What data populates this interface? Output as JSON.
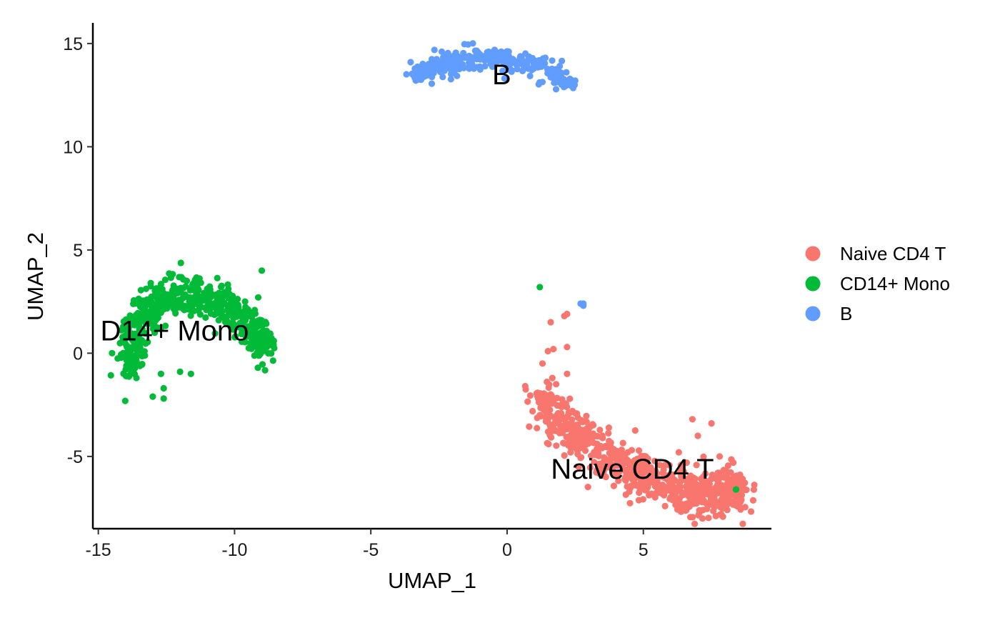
{
  "chart_data": {
    "type": "scatter",
    "title": "",
    "xlabel": "UMAP_1",
    "ylabel": "UMAP_2",
    "xlim": [
      -15.2,
      9.7
    ],
    "ylim": [
      -8.5,
      16.0
    ],
    "xticks": [
      -15,
      -10,
      -5,
      0,
      5
    ],
    "yticks": [
      -5,
      0,
      5,
      10,
      15
    ],
    "grid": false,
    "legend_position": "right",
    "series": [
      {
        "name": "Naive CD4 T",
        "color": "#F8766D",
        "cluster_label": "Naive CD4 T",
        "label_position": [
          4.6,
          -5.6
        ],
        "points": [
          [
            1.6,
            1.5
          ],
          [
            2.1,
            1.8
          ],
          [
            2.2,
            1.9
          ],
          [
            1.5,
            0.1
          ],
          [
            1.7,
            0.2
          ],
          [
            2.2,
            0.3
          ],
          [
            1.3,
            -0.5
          ],
          [
            2.2,
            -1.0
          ],
          [
            1.8,
            -1.5
          ],
          [
            1.4,
            -2.0
          ],
          [
            1.3,
            -2.5
          ],
          [
            1.2,
            -3.0
          ],
          [
            1.5,
            -3.2
          ],
          [
            6.8,
            -3.2
          ],
          [
            7.5,
            -3.4
          ],
          [
            7.0,
            -4.0
          ],
          [
            6.3,
            -4.8
          ],
          [
            7.8,
            -5.0
          ],
          [
            8.3,
            -5.3
          ],
          [
            8.6,
            -6.4
          ],
          [
            8.6,
            -6.7
          ],
          [
            2.0,
            -2.5
          ],
          [
            1.6,
            -2.1
          ],
          [
            1.9,
            -3.0
          ],
          [
            2.4,
            -2.8
          ],
          [
            2.9,
            -3.3
          ]
        ],
        "main_arc": [
          [
            1.2,
            -2.2
          ],
          [
            2.2,
            -3.6
          ],
          [
            3.6,
            -5.0
          ],
          [
            5.0,
            -6.0
          ],
          [
            6.4,
            -6.6
          ],
          [
            7.6,
            -6.9
          ],
          [
            8.5,
            -6.5
          ]
        ],
        "main_arc_count": 760,
        "main_arc_spread": 0.55
      },
      {
        "name": "CD14+ Mono",
        "color": "#00BA38",
        "cluster_label": "D14+ Mono",
        "label_position": [
          -12.2,
          1.1
        ],
        "points": [
          [
            -9.0,
            4.0
          ],
          [
            1.2,
            3.2
          ],
          [
            8.4,
            -6.6
          ],
          [
            -13.0,
            -2.1
          ],
          [
            -12.6,
            -2.2
          ],
          [
            -12.6,
            -1.7
          ],
          [
            -12.7,
            -1.0
          ],
          [
            -12.0,
            -0.9
          ],
          [
            -11.6,
            -1.0
          ],
          [
            -14.0,
            0.0
          ],
          [
            -13.6,
            -1.2
          ]
        ],
        "main_arc": [
          [
            -13.8,
            -0.8
          ],
          [
            -13.7,
            1.2
          ],
          [
            -12.8,
            2.4
          ],
          [
            -11.7,
            2.9
          ],
          [
            -10.5,
            2.4
          ],
          [
            -9.5,
            1.3
          ],
          [
            -8.8,
            0.2
          ]
        ],
        "main_arc_count": 640,
        "main_arc_spread": 0.45
      },
      {
        "name": "B",
        "color": "#619CFF",
        "cluster_label": "B",
        "label_position": [
          -0.2,
          13.5
        ],
        "points": [
          [
            2.7,
            2.4
          ],
          [
            2.8,
            2.4
          ],
          [
            2.8,
            2.3
          ],
          [
            -3.4,
            13.4
          ],
          [
            -3.3,
            13.5
          ],
          [
            2.4,
            13.2
          ],
          [
            2.5,
            13.2
          ]
        ],
        "main_arc": [
          [
            -3.4,
            13.5
          ],
          [
            -2.3,
            14.0
          ],
          [
            -1.0,
            14.3
          ],
          [
            0.2,
            14.2
          ],
          [
            1.2,
            13.8
          ],
          [
            2.3,
            13.3
          ]
        ],
        "main_arc_count": 300,
        "main_arc_spread": 0.3
      }
    ]
  }
}
